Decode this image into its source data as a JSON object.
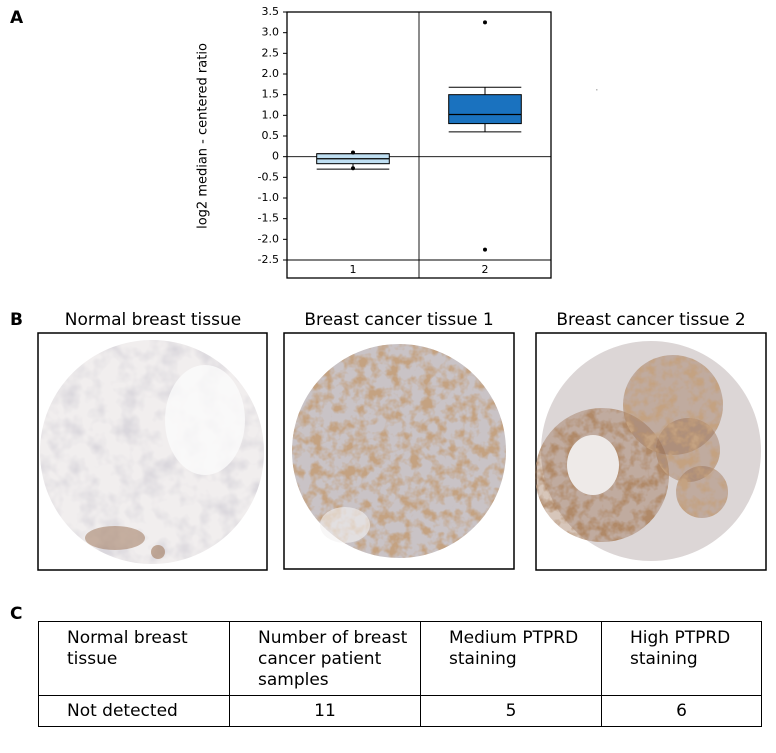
{
  "panels": {
    "a": "A",
    "b": "B",
    "c": "C"
  },
  "chart_data": {
    "type": "box",
    "ylabel": "log2 median - centered ratio",
    "categories": [
      "1",
      "2"
    ],
    "series": [
      {
        "color": "#bfdff2",
        "whislo": -0.3,
        "q1": -0.17,
        "med": -0.05,
        "q3": 0.07,
        "whishi": 0.07,
        "fliers": [
          0.1,
          -0.28
        ]
      },
      {
        "color": "#1a72bf",
        "whislo": 0.6,
        "q1": 0.8,
        "med": 1.02,
        "q3": 1.5,
        "whishi": 1.68,
        "fliers": [
          3.25,
          -2.25
        ]
      }
    ],
    "ylim": [
      -2.5,
      3.5
    ],
    "yticks": [
      3.5,
      {
        "value": 3,
        "label": "3.0"
      },
      2.5,
      {
        "value": 2,
        "label": "2.0"
      },
      1.5,
      {
        "value": 1,
        "label": "1.0"
      },
      0.5,
      0,
      -0.5,
      {
        "value": -1,
        "label": "-1.0"
      },
      -1.5,
      {
        "value": -2,
        "label": "-2.0"
      },
      -2.5
    ]
  },
  "images": {
    "titles": [
      "Normal breast tissue",
      "Breast cancer tissue 1",
      "Breast cancer tissue 2"
    ]
  },
  "table": {
    "rows": [
      [
        "Normal breast tissue",
        "Number of breast cancer patient samples",
        "Medium PTPRD staining",
        "High PTPRD staining"
      ],
      [
        "Not detected",
        11,
        5,
        6
      ]
    ]
  }
}
